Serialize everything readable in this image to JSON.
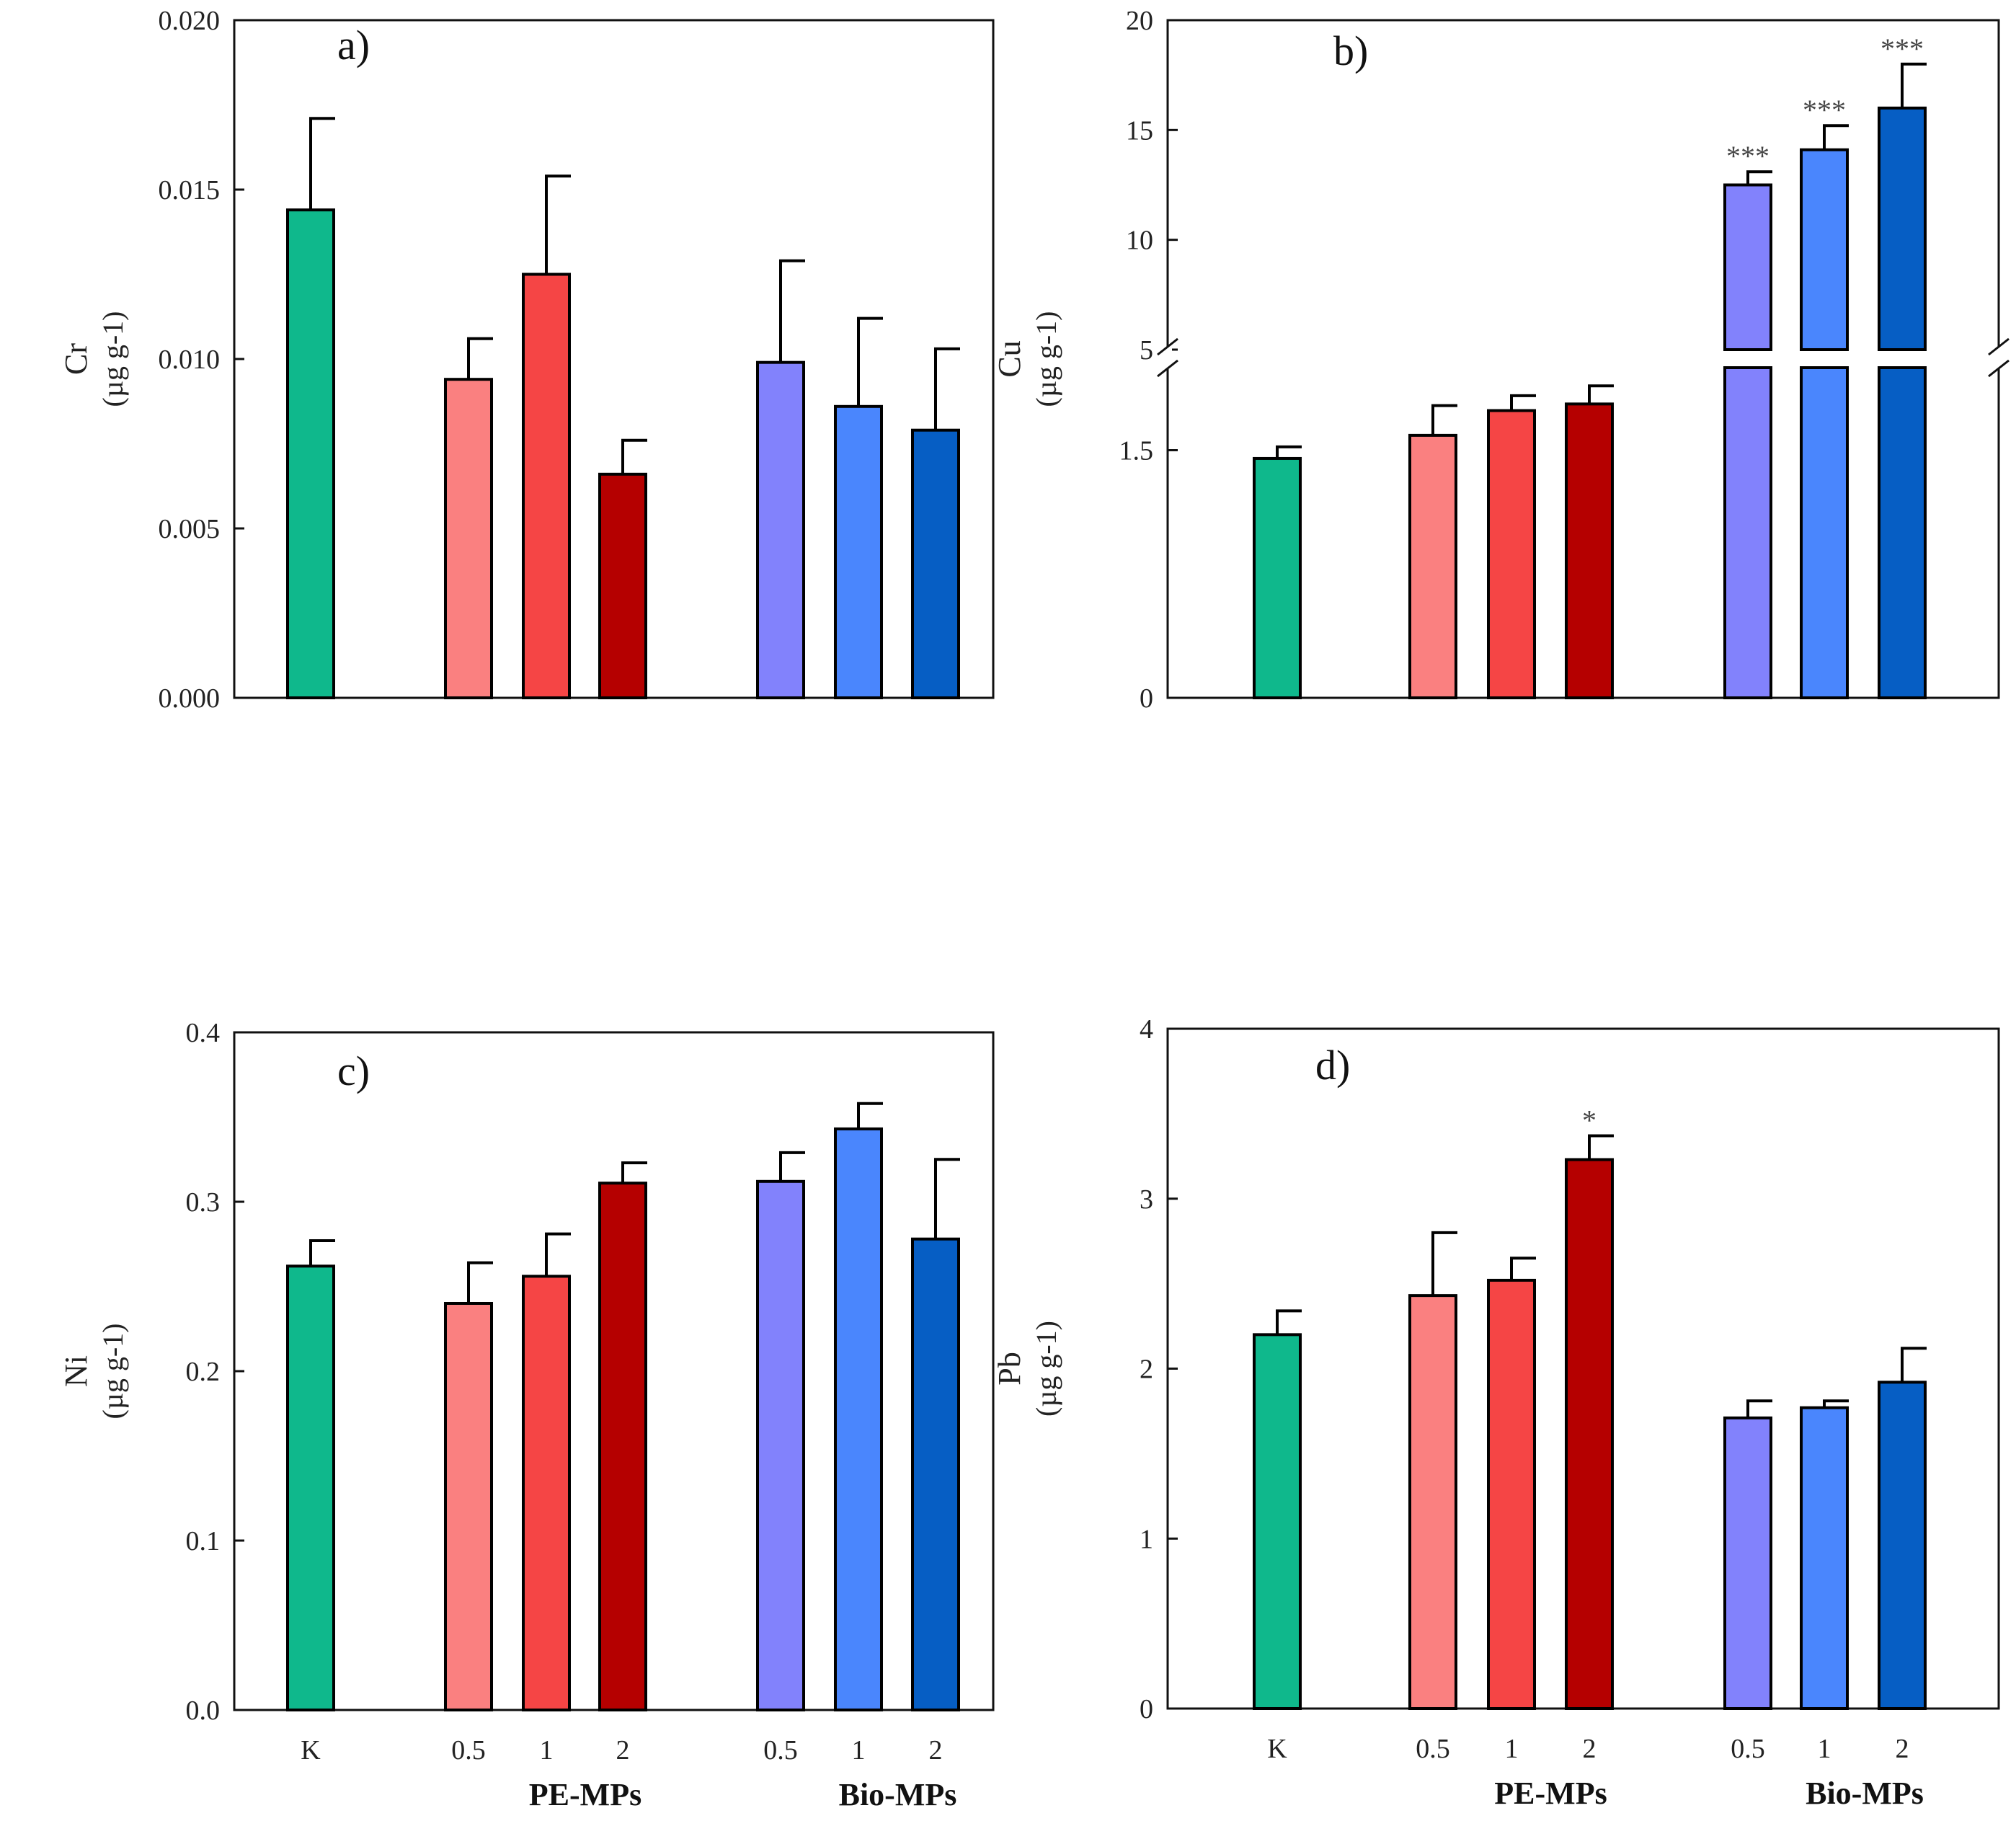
{
  "chart_data": [
    {
      "type": "bar",
      "panel_label": "a)",
      "element": "Cr",
      "ylabel": "Cr",
      "ylabel_unit": "(µg g-1)",
      "categories": [
        "K",
        "0.5",
        "1",
        "2",
        "0.5",
        "1",
        "2"
      ],
      "groups": [
        "",
        "PE-MPs",
        "PE-MPs",
        "PE-MPs",
        "Bio-MPs",
        "Bio-MPs",
        "Bio-MPs"
      ],
      "values": [
        0.0144,
        0.0094,
        0.0125,
        0.0066,
        0.0099,
        0.0086,
        0.0079
      ],
      "errors": [
        0.0027,
        0.0012,
        0.0029,
        0.001,
        0.003,
        0.0026,
        0.0024
      ],
      "significance": [
        "",
        "",
        "",
        "",
        "",
        "",
        ""
      ],
      "ylim": [
        0,
        0.02
      ],
      "yticks": [
        "0.000",
        "0.005",
        "0.010",
        "0.015",
        "0.020"
      ],
      "colors": [
        "#0fb88c",
        "#fa8080",
        "#f54545",
        "#b50000",
        "#8282fc",
        "#4a86fd",
        "#065ec4"
      ]
    },
    {
      "type": "bar",
      "panel_label": "b)",
      "element": "Cu",
      "ylabel": "Cu",
      "ylabel_unit": "(µg g-1)",
      "categories": [
        "K",
        "0.5",
        "1",
        "2",
        "0.5",
        "1",
        "2"
      ],
      "groups": [
        "",
        "PE-MPs",
        "PE-MPs",
        "PE-MPs",
        "Bio-MPs",
        "Bio-MPs",
        "Bio-MPs"
      ],
      "values": [
        1.45,
        1.59,
        1.74,
        1.78,
        12.5,
        14.1,
        16.0
      ],
      "errors": [
        0.07,
        0.18,
        0.09,
        0.11,
        0.6,
        1.1,
        2.0
      ],
      "significance": [
        "",
        "",
        "",
        "",
        "***",
        "***",
        "***"
      ],
      "broken_axis": {
        "lower_range": [
          0,
          2
        ],
        "upper_range": [
          5,
          20
        ]
      },
      "yticks_lower": [
        "0",
        "1.5"
      ],
      "yticks_upper": [
        "5",
        "10",
        "15",
        "20"
      ],
      "colors": [
        "#0fb88c",
        "#fa8080",
        "#f54545",
        "#b50000",
        "#8282fc",
        "#4a86fd",
        "#065ec4"
      ]
    },
    {
      "type": "bar",
      "panel_label": "c)",
      "element": "Ni",
      "ylabel": "Ni",
      "ylabel_unit": "(µg g-1)",
      "categories": [
        "K",
        "0.5",
        "1",
        "2",
        "0.5",
        "1",
        "2"
      ],
      "groups": [
        "",
        "PE-MPs",
        "PE-MPs",
        "PE-MPs",
        "Bio-MPs",
        "Bio-MPs",
        "Bio-MPs"
      ],
      "values": [
        0.262,
        0.24,
        0.256,
        0.311,
        0.312,
        0.343,
        0.278
      ],
      "errors": [
        0.015,
        0.024,
        0.025,
        0.012,
        0.017,
        0.015,
        0.047
      ],
      "significance": [
        "",
        "",
        "",
        "",
        "",
        "",
        ""
      ],
      "ylim": [
        0,
        0.4
      ],
      "yticks": [
        "0.0",
        "0.1",
        "0.2",
        "0.3",
        "0.4"
      ],
      "colors": [
        "#0fb88c",
        "#fa8080",
        "#f54545",
        "#b50000",
        "#8282fc",
        "#4a86fd",
        "#065ec4"
      ]
    },
    {
      "type": "bar",
      "panel_label": "d)",
      "element": "Pb",
      "ylabel": "Pb",
      "ylabel_unit": "(µg g-1)",
      "categories": [
        "K",
        "0.5",
        "1",
        "2",
        "0.5",
        "1",
        "2"
      ],
      "groups": [
        "",
        "PE-MPs",
        "PE-MPs",
        "PE-MPs",
        "Bio-MPs",
        "Bio-MPs",
        "Bio-MPs"
      ],
      "values": [
        2.2,
        2.43,
        2.52,
        3.23,
        1.71,
        1.77,
        1.92
      ],
      "errors": [
        0.14,
        0.37,
        0.13,
        0.14,
        0.1,
        0.04,
        0.2
      ],
      "significance": [
        "",
        "",
        "",
        "*",
        "",
        "",
        ""
      ],
      "ylim": [
        0,
        4
      ],
      "yticks": [
        "0",
        "1",
        "2",
        "3",
        "4"
      ],
      "colors": [
        "#0fb88c",
        "#fa8080",
        "#f54545",
        "#b50000",
        "#8282fc",
        "#4a86fd",
        "#065ec4"
      ]
    }
  ],
  "x_tick_labels": [
    "K",
    "0.5",
    "1",
    "2",
    "0.5",
    "1",
    "2"
  ],
  "group_labels": [
    "PE-MPs",
    "Bio-MPs"
  ]
}
